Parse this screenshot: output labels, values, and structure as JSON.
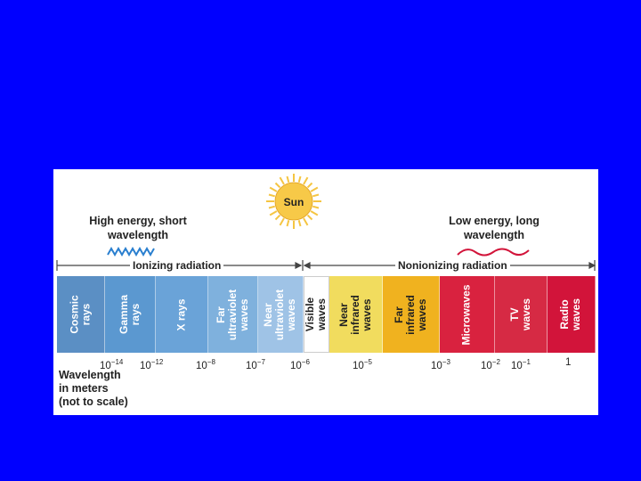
{
  "diagram": {
    "sun_label": "Sun",
    "high_energy_label": "High energy, short\nwavelength",
    "low_energy_label": "Low energy, long\nwavelength",
    "ionizing_label": "Ionizing radiation",
    "nonionizing_label": "Nonionizing radiation",
    "wavelength_caption": "Wavelength\nin meters\n(not to scale)",
    "colors": {
      "background": "#0000ff",
      "sun": "#f5c542",
      "short_wave": "#2a7fcf",
      "long_wave": "#d2143a"
    },
    "bands": [
      {
        "label": "Cosmic\nrays",
        "color": "#5b8fc4",
        "text_color": "#ffffff"
      },
      {
        "label": "Gamma\nrays",
        "color": "#5b98d0",
        "text_color": "#ffffff"
      },
      {
        "label": "X rays",
        "color": "#6aa3d8",
        "text_color": "#ffffff"
      },
      {
        "label": "Far\nultraviolet\nwaves",
        "color": "#7fb1dd",
        "text_color": "#ffffff"
      },
      {
        "label": "Near\nultraviolet\nwaves",
        "color": "#9fc3e6",
        "text_color": "#ffffff"
      },
      {
        "label": "Visible\nwaves",
        "color": "#ffffff",
        "text_color": "#222222"
      },
      {
        "label": "Near\ninfrared\nwaves",
        "color": "#f1dc5e",
        "text_color": "#222222"
      },
      {
        "label": "Far\ninfrared\nwaves",
        "color": "#f0b21f",
        "text_color": "#222222"
      },
      {
        "label": "Microwaves",
        "color": "#d9223f",
        "text_color": "#ffffff"
      },
      {
        "label": "TV\nwaves",
        "color": "#d62a44",
        "text_color": "#ffffff"
      },
      {
        "label": "Radio\nwaves",
        "color": "#d2143a",
        "text_color": "#ffffff"
      }
    ],
    "ticks": [
      {
        "base": "10",
        "exp": "−14"
      },
      {
        "base": "10",
        "exp": "−12"
      },
      {
        "base": "10",
        "exp": "−8"
      },
      {
        "base": "10",
        "exp": "−7"
      },
      {
        "base": "10",
        "exp": "−6"
      },
      {
        "base": "10",
        "exp": "−5"
      },
      {
        "base": "10",
        "exp": "−3"
      },
      {
        "base": "10",
        "exp": "−2"
      },
      {
        "base": "10",
        "exp": "−1"
      },
      {
        "base": "1",
        "exp": ""
      }
    ]
  }
}
